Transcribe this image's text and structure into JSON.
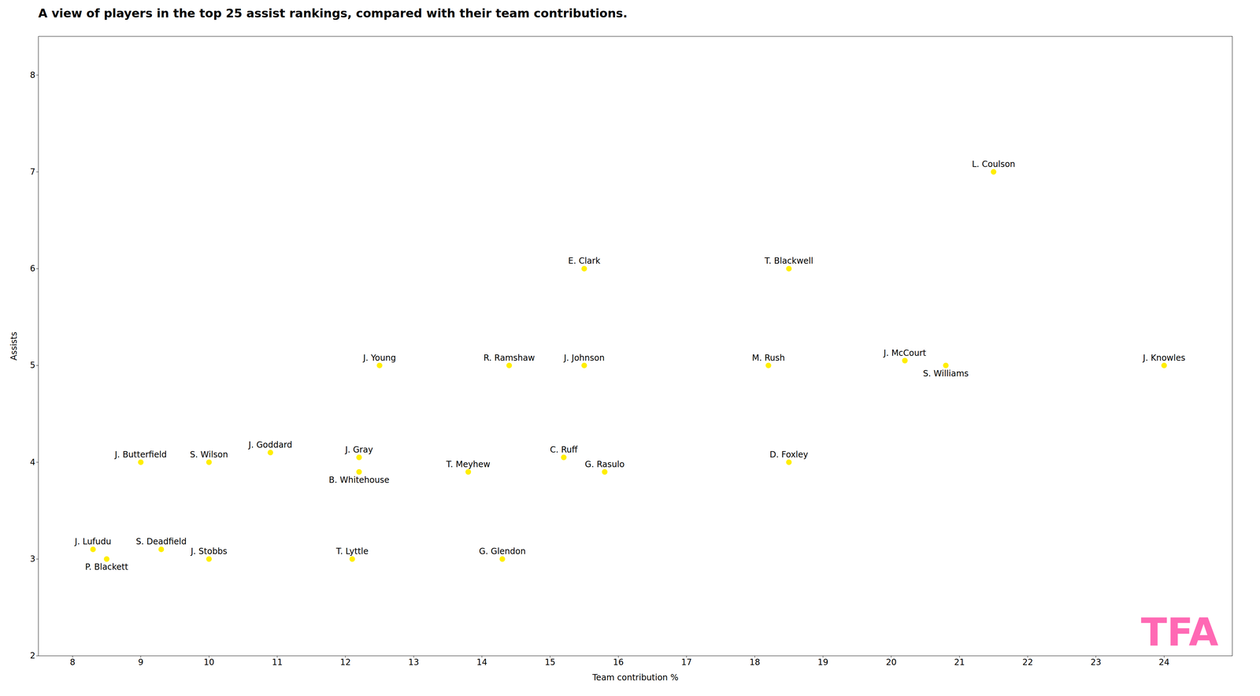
{
  "chart_data": {
    "type": "scatter",
    "title": "A view of players in the top 25 assist rankings, compared with their team contributions.",
    "x_label": "Team contribution %",
    "y_label": "Assists",
    "color": "#ffee00",
    "xlim": [
      7.5,
      25.0
    ],
    "ylim": [
      2.0,
      8.4
    ],
    "xticks": [
      8,
      9,
      10,
      11,
      12,
      13,
      14,
      15,
      16,
      17,
      18,
      19,
      20,
      21,
      22,
      23,
      24
    ],
    "yticks": [
      2,
      3,
      4,
      5,
      6,
      7,
      8
    ],
    "grid": false,
    "labels": [
      "J. Lufudu",
      "P. Blackett",
      "J. Butterfield",
      "S. Deadfield",
      "S. Wilson",
      "J. Stobbs",
      "J. Goddard",
      "J. Gray",
      "B. Whitehouse",
      "T. Lyttle",
      "J. Young",
      "R. Ramshaw",
      "T. Meyhew",
      "G. Glendon",
      "C. Ruff",
      "J. Johnson",
      "G. Rasulo",
      "E. Clark",
      "M. Rush",
      "T. Blackwell",
      "D. Foxley",
      "J. McCourt",
      "S. Williams",
      "L. Coulson",
      "J. Knowles"
    ],
    "x": [
      8.3,
      8.5,
      9.0,
      9.3,
      10.0,
      10.0,
      10.9,
      12.2,
      12.2,
      12.1,
      12.5,
      14.4,
      13.8,
      14.3,
      15.2,
      15.5,
      15.8,
      15.5,
      18.2,
      18.5,
      18.5,
      20.2,
      20.8,
      21.5,
      24.0
    ],
    "values": [
      3.1,
      3.0,
      4.0,
      3.1,
      4.0,
      3.0,
      4.1,
      4.05,
      3.9,
      3.0,
      5.0,
      5.0,
      3.9,
      3.0,
      4.05,
      5.0,
      3.9,
      6.0,
      5.0,
      6.0,
      4.0,
      5.05,
      5.0,
      7.0,
      5.0
    ],
    "annotations": [
      {
        "text": "TFA",
        "color": "#ff69b4"
      }
    ]
  }
}
